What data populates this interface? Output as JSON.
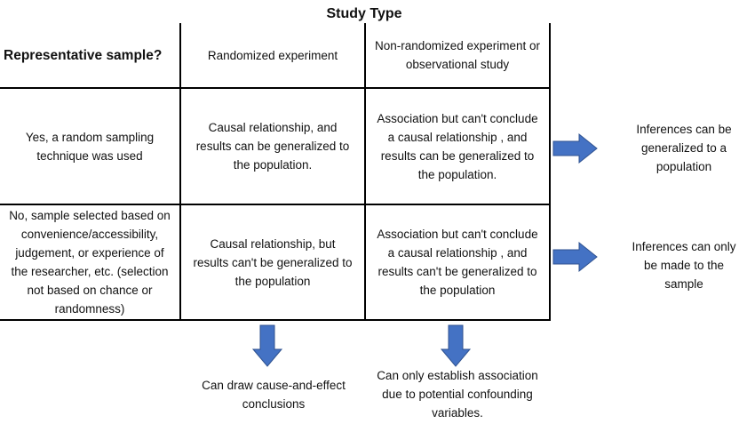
{
  "title": "Study Type",
  "header": {
    "row_label": "Representative sample?",
    "col1": "Randomized experiment",
    "col2_line1": "Non-randomized experiment or",
    "col2_line2": "observational study"
  },
  "rows": [
    {
      "label": [
        "Yes, a  random sampling",
        "technique was used"
      ],
      "col1": [
        "Causal relationship, and",
        "results can be generalized to",
        "the population."
      ],
      "col2": [
        "Association but can't conclude",
        "a  causal relationship , and",
        "results can be generalized to",
        "the population."
      ],
      "inference": [
        "Inferences  can be",
        "generalized to a",
        "population"
      ]
    },
    {
      "label": [
        "No, sample selected based on",
        "convenience/accessibility,",
        "judgement, or experience of",
        "the researcher, etc. (selection",
        "not based on chance or",
        "randomness)"
      ],
      "col1": [
        "Causal relationship,  but",
        "results can't be generalized to",
        "the population"
      ],
      "col2": [
        "Association but can't conclude",
        "a  causal relationship , and",
        "results can't be generalized to",
        "the population"
      ],
      "inference": [
        "Inferences can only",
        "be made to the",
        "sample"
      ]
    }
  ],
  "conclusions": {
    "col1": [
      "Can draw cause-and-effect",
      "conclusions"
    ],
    "col2": [
      "Can only establish association",
      "due to potential confounding",
      "variables."
    ]
  },
  "colors": {
    "arrow_fill": "#4472C4",
    "arrow_stroke": "#2F528F",
    "lines": "#000000"
  }
}
